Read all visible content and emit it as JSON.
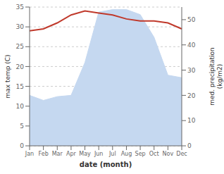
{
  "chart_data": {
    "type": "line",
    "xlabel": "date (month)",
    "ylabel": "max temp (C)",
    "y2label": "med. precipitation\n(kg/m2)",
    "categories": [
      "Jan",
      "Feb",
      "Mar",
      "Apr",
      "May",
      "Jun",
      "Jul",
      "Aug",
      "Sep",
      "Oct",
      "Nov",
      "Dec"
    ],
    "series": [
      {
        "type": "area",
        "color": "#c5d8f0",
        "axis": "y2",
        "values": [
          20,
          18,
          19.5,
          20,
          33,
          53,
          54,
          54,
          52,
          43,
          28,
          27
        ]
      },
      {
        "type": "line",
        "color": "#c0392b",
        "values": [
          29,
          29.5,
          31,
          33,
          34,
          33.5,
          33,
          32,
          31.5,
          31.5,
          31,
          29.5
        ]
      }
    ],
    "ylim": [
      0,
      35
    ],
    "yticks": [
      0,
      5,
      10,
      15,
      20,
      25,
      30,
      35
    ],
    "y2lim": [
      0,
      55
    ],
    "y2ticks": [
      0,
      10,
      20,
      30,
      40,
      50
    ],
    "grid": true
  }
}
